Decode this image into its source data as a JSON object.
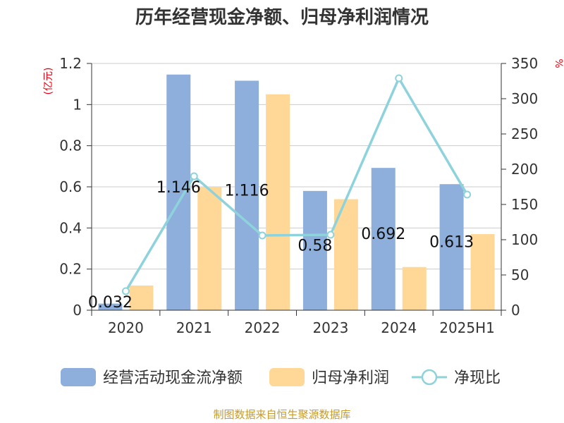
{
  "title": "历年经营现金净额、归母净利润情况",
  "source_note": "制图数据来自恒生聚源数据库",
  "chart_data": {
    "type": "bar",
    "categories": [
      "2020",
      "2021",
      "2022",
      "2023",
      "2024",
      "2025H1"
    ],
    "series": [
      {
        "name": "经营活动现金流净额",
        "kind": "bar",
        "axis": "left",
        "color": "#8eaedb",
        "values": [
          0.032,
          1.146,
          1.116,
          0.58,
          0.692,
          0.613
        ],
        "labels": [
          "0.032",
          "1.146",
          "1.116",
          "0.58",
          "0.692",
          "0.613"
        ]
      },
      {
        "name": "归母净利润",
        "kind": "bar",
        "axis": "left",
        "color": "#ffd898",
        "values": [
          0.12,
          0.6,
          1.05,
          0.54,
          0.21,
          0.37
        ]
      },
      {
        "name": "净现比",
        "kind": "line",
        "axis": "right",
        "color": "#8ed3dc",
        "values": [
          27,
          190,
          106,
          107,
          329,
          164
        ]
      }
    ],
    "y_left": {
      "unit": "(亿元)",
      "min": 0,
      "max": 1.2,
      "ticks": [
        0,
        0.2,
        0.4,
        0.6,
        0.8,
        1,
        1.2
      ],
      "tick_labels": [
        "0",
        "0.2",
        "0.4",
        "0.6",
        "0.8",
        "1",
        "1.2"
      ]
    },
    "y_right": {
      "unit": "%",
      "min": 0,
      "max": 350,
      "ticks": [
        0,
        50,
        100,
        150,
        200,
        250,
        300,
        350
      ],
      "tick_labels": [
        "0",
        "50",
        "100",
        "150",
        "200",
        "250",
        "300",
        "350"
      ]
    },
    "grid": true,
    "legend_position": "bottom"
  }
}
